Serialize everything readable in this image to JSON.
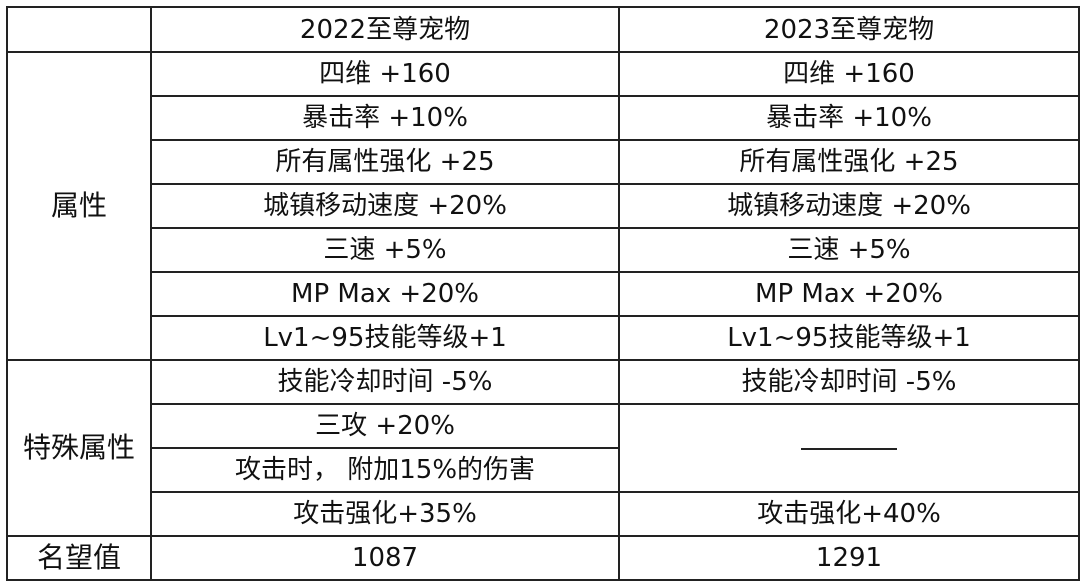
{
  "header": {
    "corner": "",
    "col_2022": "2022至尊宠物",
    "col_2023": "2023至尊宠物"
  },
  "sections": {
    "attributes_label": "属性",
    "special_label": "特殊属性",
    "reputation_label": "名望值"
  },
  "attributes": [
    {
      "y2022": "四维 +160",
      "y2023": "四维 +160"
    },
    {
      "y2022": "暴击率 +10%",
      "y2023": "暴击率 +10%"
    },
    {
      "y2022": "所有属性强化 +25",
      "y2023": "所有属性强化 +25"
    },
    {
      "y2022": "城镇移动速度 +20%",
      "y2023": "城镇移动速度 +20%"
    },
    {
      "y2022": "三速 +5%",
      "y2023": "三速 +5%"
    },
    {
      "y2022": "MP Max +20%",
      "y2023": "MP Max +20%"
    },
    {
      "y2022": "Lv1~95技能等级+1",
      "y2023": "Lv1~95技能等级+1"
    }
  ],
  "special": {
    "cooldown": {
      "y2022": "技能冷却时间 -5%",
      "y2023": "技能冷却时间 -5%"
    },
    "triple_attack_2022": "三攻 +20%",
    "extra_damage_2022": "攻击时， 附加15%的伤害",
    "attack_boost": {
      "y2022": "攻击强化+35%",
      "y2023": "攻击强化+40%"
    }
  },
  "reputation": {
    "y2022": "1087",
    "y2023": "1291"
  }
}
